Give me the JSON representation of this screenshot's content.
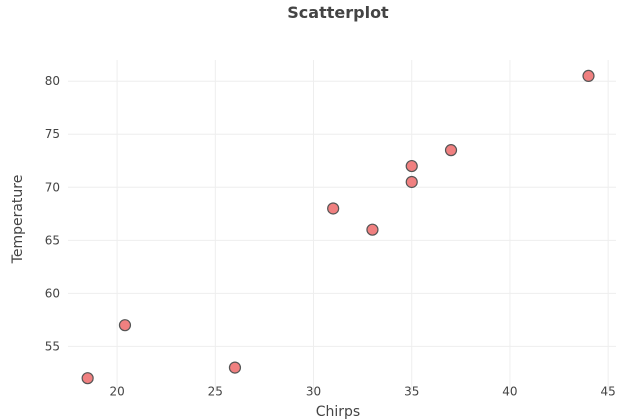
{
  "chart_data": {
    "type": "scatter",
    "title": "Scatterplot",
    "xlabel": "Chirps",
    "ylabel": "Temperature",
    "xlim": [
      17.5,
      45.4
    ],
    "ylim": [
      50.7,
      82
    ],
    "xticks": [
      20,
      25,
      30,
      35,
      40,
      45
    ],
    "yticks": [
      55,
      60,
      65,
      70,
      75,
      80
    ],
    "grid": true,
    "legend": false,
    "series": [
      {
        "x": [
          18.5,
          20.4,
          26,
          31,
          33,
          35,
          35,
          37,
          44
        ],
        "y": [
          52,
          57,
          53,
          68,
          66,
          70.5,
          72,
          73.5,
          80.5
        ]
      }
    ],
    "colors": {
      "marker_fill": "#f08080",
      "marker_stroke": "#555555",
      "grid": "#eeeeee",
      "text": "#444444"
    }
  }
}
